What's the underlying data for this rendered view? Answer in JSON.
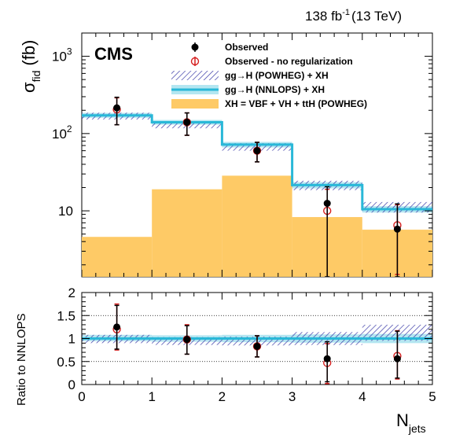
{
  "header": {
    "lumi_value": "138 fb",
    "lumi_exp": "-1",
    "lumi_energy": "(13 TeV)",
    "experiment": "CMS"
  },
  "chart_data": [
    {
      "type": "histogram",
      "panel": "main",
      "ylabel_main": "σ",
      "ylabel_sub": "fid",
      "ylabel_unit": "(fb)",
      "xlabel_main": "N",
      "xlabel_sub": "jets",
      "y_scale": "log",
      "ylim": [
        1.4,
        2000
      ],
      "xlim": [
        0,
        5
      ],
      "y_tick_labels": [
        {
          "value": 1000,
          "base": "10",
          "exp": "3"
        },
        {
          "value": 100,
          "base": "10",
          "exp": "2"
        },
        {
          "value": 10,
          "base": "10",
          "exp": ""
        }
      ],
      "bin_edges": [
        0,
        1,
        2,
        3,
        4,
        5
      ],
      "legend_position": "top-right",
      "series": [
        {
          "name": "XH = VBF + VH + ttH (POWHEG)",
          "kind": "filled-histogram",
          "color": "#FECA66",
          "values": [
            4.6,
            19,
            28.5,
            8.3,
            5.7
          ]
        },
        {
          "name": "gg→H (POWHEG) + XH",
          "kind": "hatched-band",
          "color": "#3B3CA8",
          "values": [
            168,
            130,
            67,
            21,
            11
          ],
          "band_low": [
            152,
            117,
            60,
            18.5,
            9.5
          ],
          "band_high": [
            186,
            144,
            75,
            24.5,
            13
          ]
        },
        {
          "name": "gg→H (NNLOPS) + XH",
          "kind": "band-with-line",
          "color": "#29B8D8",
          "values": [
            172,
            140,
            72,
            21.5,
            10.5
          ],
          "band_low": [
            160,
            130,
            66,
            19.5,
            9.5
          ],
          "band_high": [
            185,
            150,
            78,
            23.5,
            11.5
          ]
        },
        {
          "name": "Observed",
          "kind": "points",
          "color": "#000000",
          "x": [
            0.5,
            1.5,
            2.5,
            3.5,
            4.5
          ],
          "values": [
            215,
            140,
            60,
            12.5,
            5.8
          ],
          "err_low": [
            85,
            45,
            17,
            11.1,
            4.4
          ],
          "err_high": [
            80,
            45,
            17,
            8,
            6.5
          ]
        },
        {
          "name": "Observed - no regularization",
          "kind": "points",
          "color": "#D62020",
          "x": [
            0.5,
            1.5,
            2.5,
            3.5,
            4.5
          ],
          "values": [
            205,
            140,
            60,
            10,
            6.5
          ],
          "err_low": [
            75,
            45,
            17,
            9,
            5
          ],
          "err_high": [
            85,
            45,
            17,
            9,
            5.5
          ]
        }
      ]
    },
    {
      "type": "ratio",
      "panel": "ratio",
      "ylabel": "Ratio to NNLOPS",
      "ylim": [
        0,
        2
      ],
      "xlim": [
        0,
        5
      ],
      "y_ticks": [
        "0",
        "0.5",
        "1",
        "1.5",
        "2"
      ],
      "x_ticks": [
        "0",
        "1",
        "2",
        "3",
        "4",
        "5"
      ],
      "grid": "horizontal dotted at 0.5, 1, 1.5",
      "series": [
        {
          "name": "NNLOPS band",
          "kind": "band",
          "color": "#29B8D8",
          "low": [
            0.94,
            0.93,
            0.92,
            0.91,
            0.9
          ],
          "high": [
            1.08,
            1.07,
            1.08,
            1.09,
            1.1
          ]
        },
        {
          "name": "POWHEG band",
          "kind": "hatched-band",
          "color": "#3B3CA8",
          "low": [
            0.9,
            0.86,
            0.85,
            0.86,
            0.95
          ],
          "high": [
            1.08,
            1.03,
            1.04,
            1.14,
            1.3
          ]
        },
        {
          "name": "Observed",
          "kind": "points",
          "color": "#000000",
          "x": [
            0.5,
            1.5,
            2.5,
            3.5,
            4.5
          ],
          "values": [
            1.25,
            0.98,
            0.83,
            0.56,
            0.56
          ],
          "err_low": [
            0.48,
            0.32,
            0.23,
            0.5,
            0.42
          ],
          "err_high": [
            0.47,
            0.3,
            0.23,
            0.37,
            0.6
          ]
        },
        {
          "name": "Observed - no regularization",
          "kind": "points",
          "color": "#D62020",
          "x": [
            0.5,
            1.5,
            2.5,
            3.5,
            4.5
          ],
          "values": [
            1.2,
            0.98,
            0.83,
            0.47,
            0.62
          ],
          "err_low": [
            0.45,
            0.32,
            0.23,
            0.45,
            0.5
          ],
          "err_high": [
            0.55,
            0.32,
            0.23,
            0.42,
            0.55
          ]
        }
      ]
    }
  ]
}
